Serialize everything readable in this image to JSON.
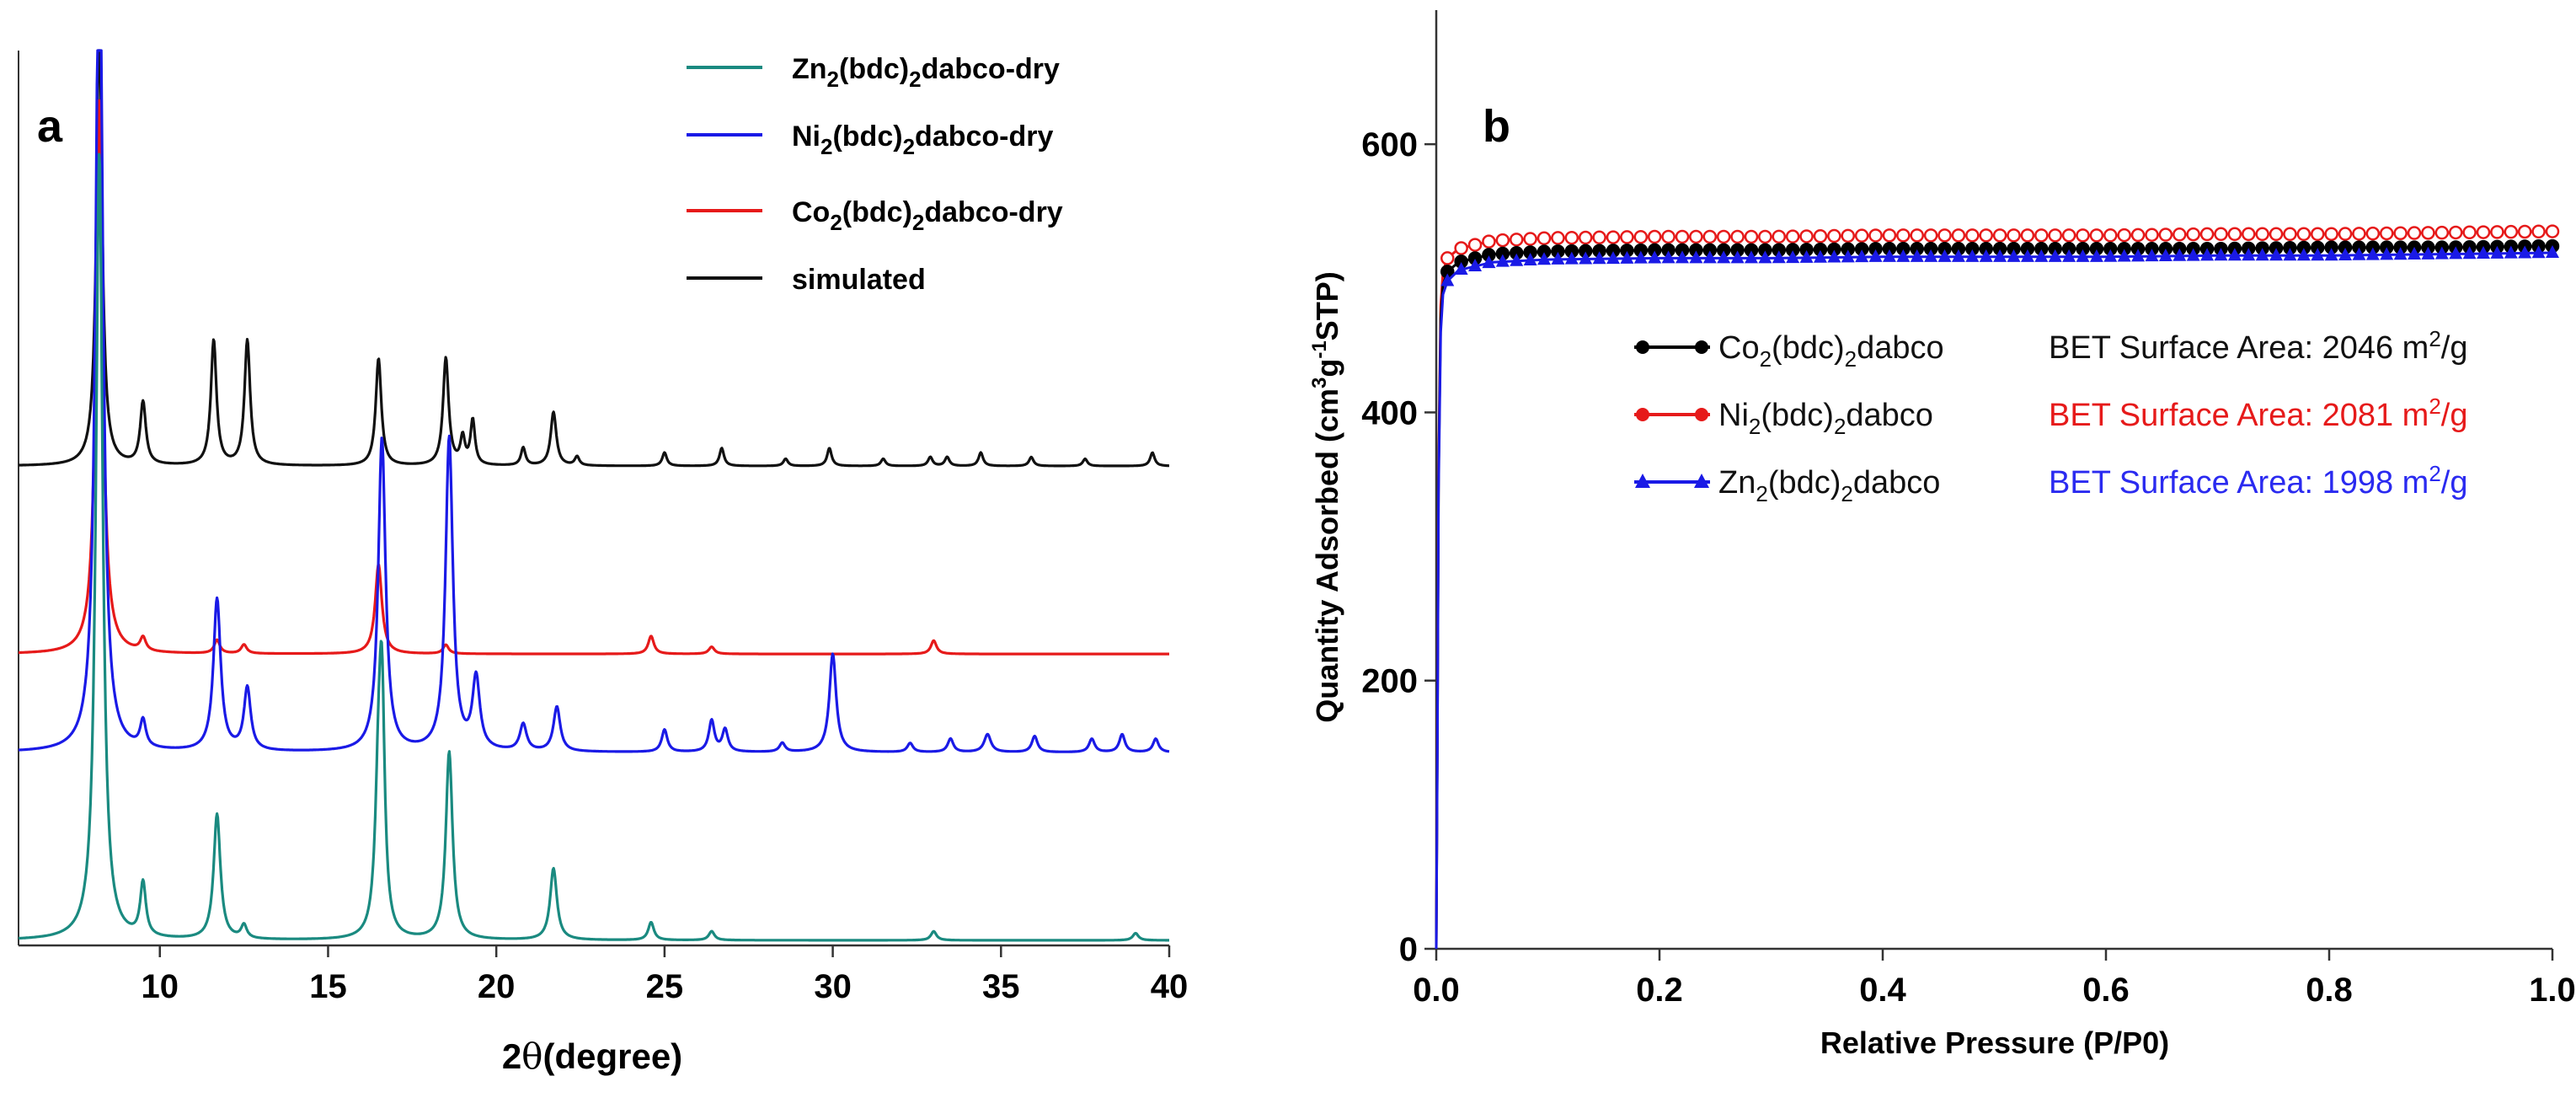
{
  "chart_data": [
    {
      "panel": "a",
      "type": "line",
      "panel_label": "a",
      "xlabel_prefix": "2",
      "xlabel_symbol": "θ",
      "xlabel_suffix": "(degree)",
      "xlabel": "2θ(degree)",
      "ylabel": "",
      "xlim": [
        5.8,
        40
      ],
      "xticks": [
        10,
        15,
        20,
        25,
        30,
        35,
        40
      ],
      "offsets": [
        0,
        0.21,
        0.32,
        0.53
      ],
      "scale": 1.0,
      "legend_position": "top-right",
      "series": [
        {
          "name": "Zn2(bdc)2dabco-dry",
          "legend": {
            "a": "Zn",
            "sub1": "2",
            "b": "(bdc)",
            "sub2": "2",
            "c": "dabco-dry"
          },
          "color": "#1a8a80",
          "peaks": [
            {
              "x": 8.2,
              "h": 0.88,
              "w": 0.12
            },
            {
              "x": 9.5,
              "h": 0.06,
              "w": 0.1
            },
            {
              "x": 11.7,
              "h": 0.14,
              "w": 0.12
            },
            {
              "x": 12.5,
              "h": 0.015,
              "w": 0.1
            },
            {
              "x": 16.5,
              "h": 0.15,
              "w": 0.12
            },
            {
              "x": 16.6,
              "h": 0.24,
              "w": 0.1
            },
            {
              "x": 18.6,
              "h": 0.21,
              "w": 0.12
            },
            {
              "x": 21.7,
              "h": 0.08,
              "w": 0.12
            },
            {
              "x": 24.6,
              "h": 0.02,
              "w": 0.1
            },
            {
              "x": 26.4,
              "h": 0.01,
              "w": 0.1
            },
            {
              "x": 33.0,
              "h": 0.01,
              "w": 0.1
            },
            {
              "x": 39.0,
              "h": 0.008,
              "w": 0.1
            }
          ]
        },
        {
          "name": "Ni2(bdc)2dabco-dry",
          "legend": {
            "a": "Ni",
            "sub1": "2",
            "b": "(bdc)",
            "sub2": "2",
            "c": "dabco-dry"
          },
          "color": "#1a1ae6",
          "peaks": [
            {
              "x": 8.2,
              "h": 1.0,
              "w": 0.12
            },
            {
              "x": 9.5,
              "h": 0.03,
              "w": 0.1
            },
            {
              "x": 11.7,
              "h": 0.17,
              "w": 0.13
            },
            {
              "x": 12.6,
              "h": 0.07,
              "w": 0.12
            },
            {
              "x": 16.6,
              "h": 0.35,
              "w": 0.13
            },
            {
              "x": 18.6,
              "h": 0.35,
              "w": 0.13
            },
            {
              "x": 19.4,
              "h": 0.08,
              "w": 0.13
            },
            {
              "x": 20.8,
              "h": 0.03,
              "w": 0.12
            },
            {
              "x": 21.8,
              "h": 0.05,
              "w": 0.12
            },
            {
              "x": 25.0,
              "h": 0.025,
              "w": 0.1
            },
            {
              "x": 26.4,
              "h": 0.035,
              "w": 0.1
            },
            {
              "x": 26.8,
              "h": 0.025,
              "w": 0.1
            },
            {
              "x": 28.5,
              "h": 0.01,
              "w": 0.1
            },
            {
              "x": 30.0,
              "h": 0.11,
              "w": 0.12
            },
            {
              "x": 32.3,
              "h": 0.01,
              "w": 0.1
            },
            {
              "x": 33.5,
              "h": 0.015,
              "w": 0.1
            },
            {
              "x": 34.6,
              "h": 0.02,
              "w": 0.12
            },
            {
              "x": 36.0,
              "h": 0.018,
              "w": 0.1
            },
            {
              "x": 37.7,
              "h": 0.015,
              "w": 0.1
            },
            {
              "x": 38.6,
              "h": 0.02,
              "w": 0.1
            },
            {
              "x": 39.6,
              "h": 0.015,
              "w": 0.1
            }
          ]
        },
        {
          "name": "Co2(bdc)2dabco-dry",
          "legend": {
            "a": "Co",
            "sub1": "2",
            "b": "(bdc)",
            "sub2": "2",
            "c": "dabco-dry"
          },
          "color": "#e61a1a",
          "peaks": [
            {
              "x": 8.2,
              "h": 0.62,
              "w": 0.12
            },
            {
              "x": 9.5,
              "h": 0.015,
              "w": 0.1
            },
            {
              "x": 11.7,
              "h": 0.015,
              "w": 0.1
            },
            {
              "x": 12.5,
              "h": 0.01,
              "w": 0.1
            },
            {
              "x": 16.5,
              "h": 0.1,
              "w": 0.12
            },
            {
              "x": 18.5,
              "h": 0.01,
              "w": 0.1
            },
            {
              "x": 24.6,
              "h": 0.02,
              "w": 0.1
            },
            {
              "x": 26.4,
              "h": 0.008,
              "w": 0.1
            },
            {
              "x": 33.0,
              "h": 0.015,
              "w": 0.1
            }
          ]
        },
        {
          "name": "simulated",
          "legend": {
            "a": "simulated",
            "sub1": "",
            "b": "",
            "sub2": "",
            "c": ""
          },
          "color": "#111111",
          "peaks": [
            {
              "x": 8.2,
              "h": 0.5,
              "w": 0.1
            },
            {
              "x": 9.5,
              "h": 0.07,
              "w": 0.1
            },
            {
              "x": 11.6,
              "h": 0.14,
              "w": 0.1
            },
            {
              "x": 12.6,
              "h": 0.14,
              "w": 0.1
            },
            {
              "x": 16.5,
              "h": 0.12,
              "w": 0.1
            },
            {
              "x": 18.5,
              "h": 0.12,
              "w": 0.1
            },
            {
              "x": 19.0,
              "h": 0.03,
              "w": 0.08
            },
            {
              "x": 19.3,
              "h": 0.05,
              "w": 0.08
            },
            {
              "x": 20.8,
              "h": 0.02,
              "w": 0.08
            },
            {
              "x": 21.7,
              "h": 0.06,
              "w": 0.1
            },
            {
              "x": 22.4,
              "h": 0.01,
              "w": 0.08
            },
            {
              "x": 25.0,
              "h": 0.015,
              "w": 0.08
            },
            {
              "x": 26.7,
              "h": 0.02,
              "w": 0.08
            },
            {
              "x": 28.6,
              "h": 0.008,
              "w": 0.08
            },
            {
              "x": 29.9,
              "h": 0.02,
              "w": 0.08
            },
            {
              "x": 31.5,
              "h": 0.008,
              "w": 0.08
            },
            {
              "x": 32.9,
              "h": 0.01,
              "w": 0.08
            },
            {
              "x": 33.4,
              "h": 0.01,
              "w": 0.08
            },
            {
              "x": 34.4,
              "h": 0.015,
              "w": 0.08
            },
            {
              "x": 35.9,
              "h": 0.01,
              "w": 0.08
            },
            {
              "x": 37.5,
              "h": 0.008,
              "w": 0.08
            },
            {
              "x": 39.5,
              "h": 0.015,
              "w": 0.08
            }
          ]
        }
      ]
    },
    {
      "panel": "b",
      "type": "line",
      "panel_label": "b",
      "xlabel": "Relative Pressure (P/P0)",
      "ylabel": "Quantity Adsorbed (cm³g⁻¹STP)",
      "ylabel_parts": {
        "a": "Quantity Adsorbed (cm",
        "sup1": "3",
        "b": "g",
        "sup2": "-1",
        "c": "STP)"
      },
      "xlim": [
        0,
        1.0
      ],
      "ylim": [
        0,
        700
      ],
      "xticks": [
        0.0,
        0.2,
        0.4,
        0.6,
        0.8,
        1.0
      ],
      "xtick_labels": [
        "0.0",
        "0.2",
        "0.4",
        "0.6",
        "0.8",
        "1.0"
      ],
      "yticks": [
        0,
        200,
        400,
        600
      ],
      "ytick_labels": [
        "0",
        "200",
        "400",
        "600"
      ],
      "legend_position": "right",
      "series": [
        {
          "name": "Co2(bdc)2dabco",
          "legend": {
            "a": "Co",
            "sub": "2",
            "b": "(bdc)",
            "sub2": "2",
            "c": "dabco"
          },
          "bet": {
            "prefix": "BET Surface Area: 2046 m",
            "sup": "2",
            "suffix": "/g"
          },
          "bet_area_m2_per_g": 2046,
          "marker": "circle",
          "color": "#000000",
          "bet_color": "#111111",
          "plateau": 522,
          "x": [
            0.0,
            0.001,
            0.002,
            0.004,
            0.006,
            0.01,
            0.02,
            0.05,
            0.1,
            0.2,
            0.3,
            0.4,
            0.5,
            0.6,
            0.7,
            0.8,
            0.9,
            1.0
          ],
          "y": [
            0,
            150,
            350,
            470,
            495,
            505,
            512,
            518,
            520,
            521,
            521,
            522,
            522,
            522,
            522,
            523,
            523,
            524
          ]
        },
        {
          "name": "Ni2(bdc)2dabco",
          "legend": {
            "a": "Ni",
            "sub": "2",
            "b": "(bdc)",
            "sub2": "2",
            "c": "dabco"
          },
          "bet": {
            "prefix": "BET Surface Area: 2081 m",
            "sup": "2",
            "suffix": "/g"
          },
          "bet_area_m2_per_g": 2081,
          "marker": "circle",
          "color": "#e61a1a",
          "bet_color": "#e61a1a",
          "plateau": 532,
          "x": [
            0.0,
            0.001,
            0.002,
            0.004,
            0.006,
            0.01,
            0.02,
            0.05,
            0.1,
            0.2,
            0.3,
            0.4,
            0.5,
            0.6,
            0.7,
            0.8,
            0.9,
            1.0
          ],
          "y": [
            0,
            160,
            360,
            480,
            505,
            515,
            522,
            528,
            530,
            531,
            531,
            532,
            532,
            532,
            533,
            533,
            534,
            535
          ]
        },
        {
          "name": "Zn2(bdc)2dabco",
          "legend": {
            "a": "Zn",
            "sub": "2",
            "b": "(bdc)",
            "sub2": "2",
            "c": "dabco"
          },
          "bet": {
            "prefix": "BET Surface Area: 1998 m",
            "sup": "2",
            "suffix": "/g"
          },
          "bet_area_m2_per_g": 1998,
          "marker": "triangle",
          "color": "#1a1ae6",
          "bet_color": "#2a2af0",
          "plateau": 516,
          "x": [
            0.0,
            0.001,
            0.002,
            0.004,
            0.006,
            0.01,
            0.02,
            0.05,
            0.1,
            0.2,
            0.3,
            0.4,
            0.5,
            0.6,
            0.7,
            0.8,
            0.9,
            1.0
          ],
          "y": [
            0,
            140,
            340,
            460,
            488,
            498,
            506,
            512,
            514,
            515,
            515,
            516,
            516,
            516,
            517,
            517,
            518,
            519
          ]
        }
      ]
    }
  ]
}
